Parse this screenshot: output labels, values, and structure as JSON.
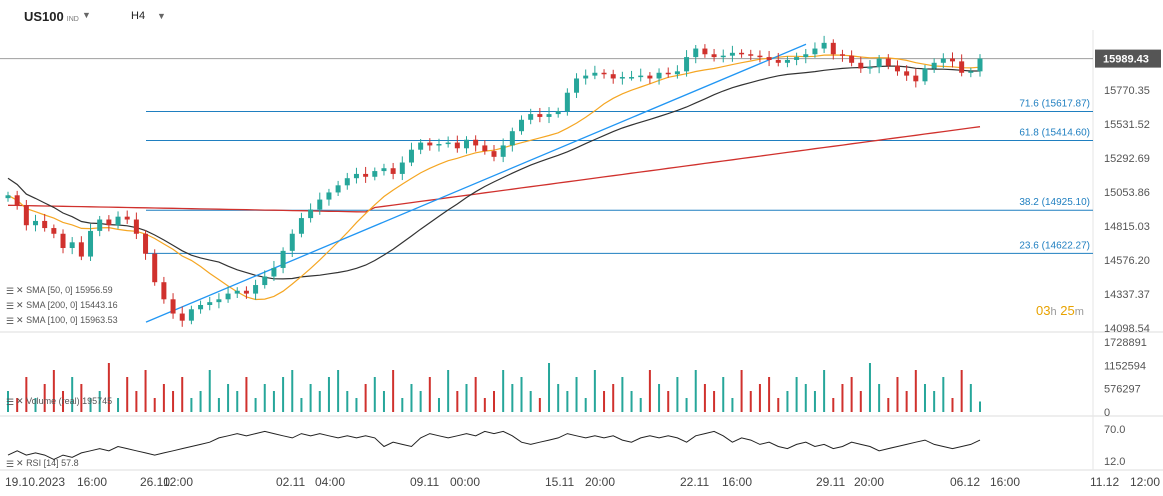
{
  "header": {
    "symbol": "US100",
    "symbol_tag": "IND",
    "timeframe": "H4"
  },
  "price_axis": {
    "labels": [
      "15770.35",
      "15531.52",
      "15292.69",
      "15053.86",
      "14815.03",
      "14576.20",
      "14337.37",
      "14098.54"
    ],
    "current_price": "15989.43"
  },
  "fib_levels": [
    {
      "label": "71.6 (15617.87)",
      "price": 15617.87
    },
    {
      "label": "61.8 (15414.60)",
      "price": 15414.6
    },
    {
      "label": "38.2 (14925.10)",
      "price": 14925.1
    },
    {
      "label": "23.6 (14622.27)",
      "price": 14622.27
    }
  ],
  "indicators": [
    {
      "label": "SMA [50, 0]",
      "value": "15956.59",
      "color": "#f5a623"
    },
    {
      "label": "SMA [200, 0]",
      "value": "15443.16",
      "color": "#d0312d"
    },
    {
      "label": "SMA [100, 0]",
      "value": "15963.53",
      "color": "#333333"
    }
  ],
  "countdown": {
    "hours": "03",
    "h": "h",
    "minutes": "25",
    "m": "m"
  },
  "volume": {
    "label": "Volume (real)",
    "value": "195745",
    "axis": [
      "1728891",
      "1152594",
      "576297",
      "0"
    ]
  },
  "rsi": {
    "label": "RSI [14]",
    "value": "57.8",
    "axis": [
      "70.0",
      "12.0"
    ]
  },
  "time_axis": [
    "19.10.2023",
    "16:00",
    "26.10",
    "12:00",
    "02.11",
    "04:00",
    "09.11",
    "00:00",
    "15.11",
    "20:00",
    "22.11",
    "16:00",
    "29.11",
    "20:00",
    "06.12",
    "16:00",
    "11.12",
    "12:00"
  ],
  "colors": {
    "up": "#26a69a",
    "down": "#d0312d",
    "fib": "#1f7fc0",
    "trend": "#2196f3",
    "sma50": "#f5a623",
    "sma200": "#d0312d",
    "sma100": "#333333"
  },
  "chart_data": {
    "type": "candlestick",
    "instrument": "US100",
    "timeframe": "H4",
    "y_range": [
      14098.54,
      16100
    ],
    "candles_close_approx": [
      15030,
      14960,
      14820,
      14850,
      14800,
      14760,
      14660,
      14700,
      14600,
      14780,
      14860,
      14820,
      14880,
      14860,
      14760,
      14620,
      14420,
      14300,
      14200,
      14150,
      14230,
      14260,
      14280,
      14300,
      14340,
      14360,
      14340,
      14400,
      14460,
      14520,
      14640,
      14760,
      14870,
      14930,
      15000,
      15050,
      15100,
      15150,
      15180,
      15160,
      15200,
      15220,
      15180,
      15260,
      15350,
      15400,
      15380,
      15390,
      15400,
      15360,
      15420,
      15380,
      15340,
      15300,
      15380,
      15480,
      15560,
      15600,
      15580,
      15600,
      15620,
      15750,
      15850,
      15870,
      15890,
      15880,
      15850,
      15860,
      15860,
      15870,
      15850,
      15890,
      15880,
      15900,
      16000,
      16060,
      16020,
      16000,
      16010,
      16030,
      16020,
      16010,
      16000,
      15980,
      15960,
      15980,
      16000,
      16020,
      16060,
      16100,
      16020,
      16010,
      15960,
      15920,
      15930,
      15990,
      15940,
      15900,
      15870,
      15830,
      15920,
      15960,
      15990,
      15970,
      15890,
      15900,
      15990
    ],
    "volume_relative": [
      0.3,
      0.2,
      0.5,
      0.2,
      0.4,
      0.6,
      0.3,
      0.5,
      0.4,
      0.2,
      0.3,
      0.7,
      0.2,
      0.5,
      0.3,
      0.6,
      0.2,
      0.4,
      0.3,
      0.5,
      0.2,
      0.3,
      0.6,
      0.2,
      0.4,
      0.3,
      0.5,
      0.2,
      0.4,
      0.3,
      0.5,
      0.6,
      0.2,
      0.4,
      0.3,
      0.5,
      0.6,
      0.3,
      0.2,
      0.4,
      0.5,
      0.3,
      0.6,
      0.2,
      0.4,
      0.3,
      0.5,
      0.2,
      0.6,
      0.3,
      0.4,
      0.5,
      0.2,
      0.3,
      0.6,
      0.4,
      0.5,
      0.3,
      0.2,
      0.7,
      0.4,
      0.3,
      0.5,
      0.2,
      0.6,
      0.3,
      0.4,
      0.5,
      0.3,
      0.2,
      0.6,
      0.4,
      0.3,
      0.5,
      0.2,
      0.6,
      0.4,
      0.3,
      0.5,
      0.2,
      0.6,
      0.3,
      0.4,
      0.5,
      0.2,
      0.3,
      0.5,
      0.4,
      0.3,
      0.6,
      0.2,
      0.4,
      0.5,
      0.3,
      0.7,
      0.4,
      0.2,
      0.5,
      0.3,
      0.6,
      0.4,
      0.3,
      0.5,
      0.2,
      0.6,
      0.4,
      0.15
    ],
    "rsi_relative": [
      0.3,
      0.4,
      0.3,
      0.35,
      0.3,
      0.2,
      0.3,
      0.25,
      0.35,
      0.4,
      0.45,
      0.4,
      0.5,
      0.45,
      0.4,
      0.35,
      0.3,
      0.35,
      0.4,
      0.45,
      0.5,
      0.55,
      0.6,
      0.7,
      0.75,
      0.8,
      0.75,
      0.8,
      0.85,
      0.8,
      0.75,
      0.7,
      0.8,
      0.75,
      0.8,
      0.75,
      0.7,
      0.75,
      0.7,
      0.75,
      0.7,
      0.5,
      0.6,
      0.55,
      0.5,
      0.7,
      0.8,
      0.75,
      0.7,
      0.75,
      0.8,
      0.75,
      0.85,
      0.8,
      0.85,
      0.75,
      0.6,
      0.55,
      0.6,
      0.65,
      0.7,
      0.8,
      0.75,
      0.7,
      0.75,
      0.7,
      0.75,
      0.65,
      0.6,
      0.7,
      0.75,
      0.7,
      0.75,
      0.7,
      0.6,
      0.75,
      0.8,
      0.85,
      0.75,
      0.6,
      0.7,
      0.65,
      0.55,
      0.6,
      0.5,
      0.45,
      0.55,
      0.6,
      0.5,
      0.55,
      0.45,
      0.5,
      0.6,
      0.55,
      0.5,
      0.4,
      0.45,
      0.5,
      0.55,
      0.6,
      0.65,
      0.55,
      0.5,
      0.45,
      0.5,
      0.55,
      0.65
    ]
  }
}
